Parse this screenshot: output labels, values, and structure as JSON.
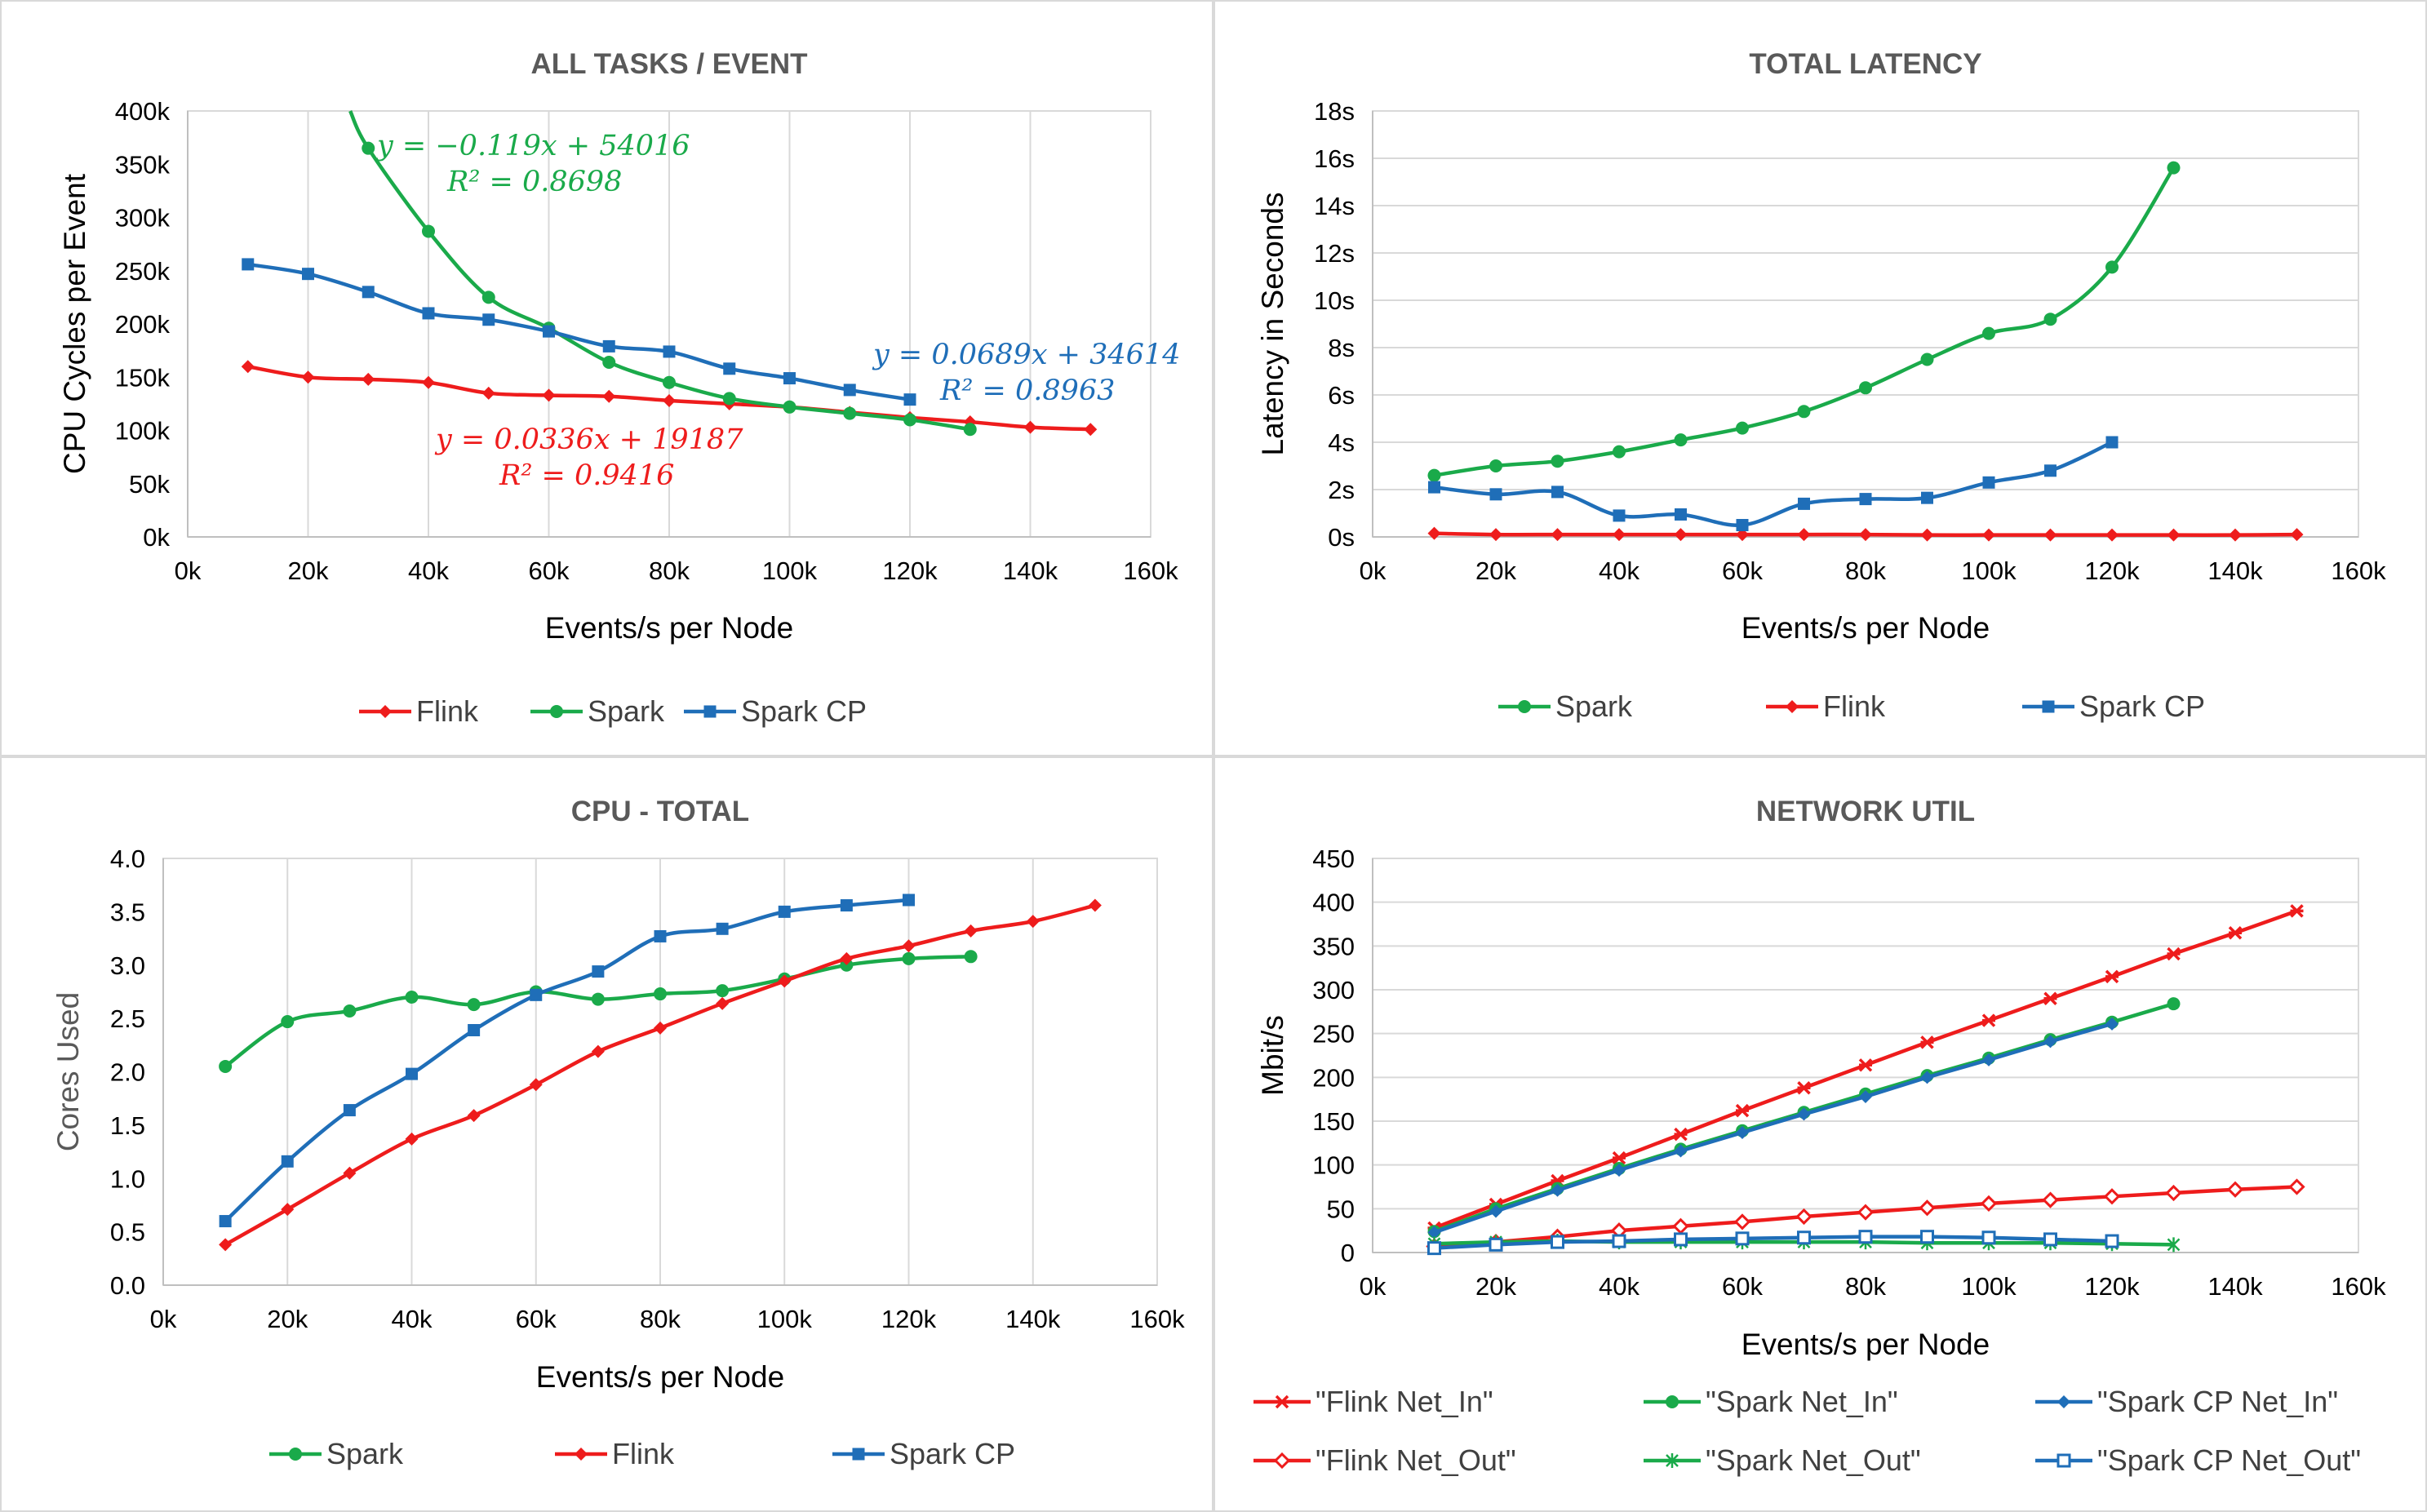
{
  "colors": {
    "flink": "#ee1c1c",
    "spark": "#1aaa4a",
    "spark_cp": "#1f6eb8",
    "grid": "#d9d9d9",
    "axis_text": "#000000",
    "title_text": "#595959"
  },
  "chart_data": [
    {
      "id": "all-tasks",
      "type": "line",
      "title": "ALL TASKS / EVENT",
      "xlabel": "Events/s per Node",
      "ylabel": "CPU Cycles per Event",
      "xlim": [
        0,
        160000
      ],
      "ylim": [
        0,
        400000
      ],
      "xticks": [
        0,
        20000,
        40000,
        60000,
        80000,
        100000,
        120000,
        140000,
        160000
      ],
      "xtick_labels": [
        "0k",
        "20k",
        "40k",
        "60k",
        "80k",
        "100k",
        "120k",
        "140k",
        "160k"
      ],
      "yticks": [
        0,
        50000,
        100000,
        150000,
        200000,
        250000,
        300000,
        350000,
        400000
      ],
      "ytick_labels": [
        "0k",
        "50k",
        "100k",
        "150k",
        "200k",
        "250k",
        "300k",
        "350k",
        "400k"
      ],
      "grid": "vertical",
      "series": [
        {
          "name": "Flink",
          "key": "flink",
          "marker": "diamond",
          "x": [
            10000,
            20000,
            30000,
            40000,
            50000,
            60000,
            70000,
            80000,
            90000,
            100000,
            110000,
            120000,
            130000,
            140000,
            150000
          ],
          "y": [
            160000,
            150000,
            148000,
            145000,
            135000,
            133000,
            132000,
            128000,
            125000,
            122000,
            117000,
            112000,
            108000,
            103000,
            101000
          ]
        },
        {
          "name": "Spark",
          "key": "spark",
          "marker": "circle",
          "lead_in": {
            "x": 27000,
            "y": 400000
          },
          "x": [
            30000,
            40000,
            50000,
            60000,
            70000,
            80000,
            90000,
            100000,
            110000,
            120000,
            130000
          ],
          "y": [
            365000,
            287000,
            225000,
            196000,
            164000,
            145000,
            130000,
            122000,
            116000,
            110000,
            101000
          ]
        },
        {
          "name": "Spark CP",
          "key": "spark_cp",
          "marker": "square",
          "x": [
            10000,
            20000,
            30000,
            40000,
            50000,
            60000,
            70000,
            80000,
            90000,
            100000,
            110000,
            120000
          ],
          "y": [
            256000,
            247000,
            230000,
            210000,
            204000,
            193000,
            179000,
            174000,
            158000,
            149000,
            138000,
            129000
          ]
        }
      ],
      "annotations": [
        {
          "key": "spark",
          "eq": "y = −0.119x + 54016",
          "r2": "R² = 0.8698"
        },
        {
          "key": "spark_cp",
          "eq": "y = 0.0689x + 34614",
          "r2": "R² = 0.8963"
        },
        {
          "key": "flink",
          "eq": "y = 0.0336x + 19187",
          "r2": "R² = 0.9416"
        }
      ],
      "legend": [
        "Flink",
        "Spark",
        "Spark CP"
      ],
      "legend_position": "bottom"
    },
    {
      "id": "total-latency",
      "type": "line",
      "title": "TOTAL LATENCY",
      "xlabel": "Events/s per Node",
      "ylabel": "Latency in Seconds",
      "xlim": [
        0,
        160000
      ],
      "ylim": [
        0,
        18
      ],
      "xticks": [
        0,
        20000,
        40000,
        60000,
        80000,
        100000,
        120000,
        140000,
        160000
      ],
      "xtick_labels": [
        "0k",
        "20k",
        "40k",
        "60k",
        "80k",
        "100k",
        "120k",
        "140k",
        "160k"
      ],
      "yticks": [
        0,
        2,
        4,
        6,
        8,
        10,
        12,
        14,
        16,
        18
      ],
      "ytick_labels": [
        "0s",
        "2s",
        "4s",
        "6s",
        "8s",
        "10s",
        "12s",
        "14s",
        "16s",
        "18s"
      ],
      "grid": "horizontal",
      "series": [
        {
          "name": "Spark",
          "key": "spark",
          "marker": "circle",
          "x": [
            10000,
            20000,
            30000,
            40000,
            50000,
            60000,
            70000,
            80000,
            90000,
            100000,
            110000,
            120000,
            130000
          ],
          "y": [
            2.6,
            3.0,
            3.2,
            3.6,
            4.1,
            4.6,
            5.3,
            6.3,
            7.5,
            8.6,
            9.2,
            11.4,
            15.6
          ]
        },
        {
          "name": "Flink",
          "key": "flink",
          "marker": "diamond",
          "x": [
            10000,
            20000,
            30000,
            40000,
            50000,
            60000,
            70000,
            80000,
            90000,
            100000,
            110000,
            120000,
            130000,
            140000,
            150000
          ],
          "y": [
            0.15,
            0.1,
            0.1,
            0.1,
            0.1,
            0.1,
            0.1,
            0.1,
            0.08,
            0.08,
            0.08,
            0.08,
            0.08,
            0.08,
            0.1
          ]
        },
        {
          "name": "Spark CP",
          "key": "spark_cp",
          "marker": "square",
          "x": [
            10000,
            20000,
            30000,
            40000,
            50000,
            60000,
            70000,
            80000,
            90000,
            100000,
            110000,
            120000
          ],
          "y": [
            2.1,
            1.8,
            1.9,
            0.9,
            0.95,
            0.5,
            1.4,
            1.6,
            1.65,
            2.3,
            2.8,
            4.0
          ]
        }
      ],
      "legend": [
        "Spark",
        "Flink",
        "Spark CP"
      ],
      "legend_position": "bottom"
    },
    {
      "id": "cpu-total",
      "type": "line",
      "title": "CPU - TOTAL",
      "xlabel": "Events/s per Node",
      "ylabel": "Cores Used",
      "xlim": [
        0,
        160000
      ],
      "ylim": [
        0,
        4
      ],
      "xticks": [
        0,
        20000,
        40000,
        60000,
        80000,
        100000,
        120000,
        140000,
        160000
      ],
      "xtick_labels": [
        "0k",
        "20k",
        "40k",
        "60k",
        "80k",
        "100k",
        "120k",
        "140k",
        "160k"
      ],
      "yticks": [
        0,
        0.5,
        1,
        1.5,
        2,
        2.5,
        3,
        3.5,
        4
      ],
      "ytick_labels": [
        "0.0",
        "0.5",
        "1.0",
        "1.5",
        "2.0",
        "2.5",
        "3.0",
        "3.5",
        "4.0"
      ],
      "grid": "vertical",
      "series": [
        {
          "name": "Spark",
          "key": "spark",
          "marker": "circle",
          "x": [
            10000,
            20000,
            30000,
            40000,
            50000,
            60000,
            70000,
            80000,
            90000,
            100000,
            110000,
            120000,
            130000
          ],
          "y": [
            2.05,
            2.47,
            2.57,
            2.7,
            2.63,
            2.75,
            2.68,
            2.73,
            2.76,
            2.87,
            3.0,
            3.06,
            3.08
          ]
        },
        {
          "name": "Flink",
          "key": "flink",
          "marker": "diamond",
          "x": [
            10000,
            20000,
            30000,
            40000,
            50000,
            60000,
            70000,
            80000,
            90000,
            100000,
            110000,
            120000,
            130000,
            140000,
            150000
          ],
          "y": [
            0.38,
            0.71,
            1.05,
            1.37,
            1.59,
            1.88,
            2.19,
            2.41,
            2.64,
            2.85,
            3.06,
            3.18,
            3.32,
            3.41,
            3.56
          ]
        },
        {
          "name": "Spark CP",
          "key": "spark_cp",
          "marker": "square",
          "x": [
            10000,
            20000,
            30000,
            40000,
            50000,
            60000,
            70000,
            80000,
            90000,
            100000,
            110000,
            120000
          ],
          "y": [
            0.6,
            1.16,
            1.64,
            1.98,
            2.39,
            2.72,
            2.94,
            3.27,
            3.34,
            3.5,
            3.56,
            3.61
          ]
        }
      ],
      "legend": [
        "Spark",
        "Flink",
        "Spark CP"
      ],
      "legend_position": "bottom"
    },
    {
      "id": "network-util",
      "type": "line",
      "title": "NETWORK UTIL",
      "xlabel": "Events/s per Node",
      "ylabel": "Mbit/s",
      "xlim": [
        0,
        160000
      ],
      "ylim": [
        0,
        450
      ],
      "xticks": [
        0,
        20000,
        40000,
        60000,
        80000,
        100000,
        120000,
        140000,
        160000
      ],
      "xtick_labels": [
        "0k",
        "20k",
        "40k",
        "60k",
        "80k",
        "100k",
        "120k",
        "140k",
        "160k"
      ],
      "yticks": [
        0,
        50,
        100,
        150,
        200,
        250,
        300,
        350,
        400,
        450
      ],
      "ytick_labels": [
        "0",
        "50",
        "100",
        "150",
        "200",
        "250",
        "300",
        "350",
        "400",
        "450"
      ],
      "grid": "horizontal",
      "series": [
        {
          "name": "\"Flink Net_In\"",
          "key": "flink",
          "marker": "xbar",
          "x": [
            10000,
            20000,
            30000,
            40000,
            50000,
            60000,
            70000,
            80000,
            90000,
            100000,
            110000,
            120000,
            130000,
            140000,
            150000
          ],
          "y": [
            28,
            55,
            82,
            108,
            135,
            162,
            188,
            214,
            240,
            265,
            290,
            315,
            341,
            365,
            390
          ]
        },
        {
          "name": "\"Spark Net_In\"",
          "key": "spark",
          "marker": "circle",
          "x": [
            10000,
            20000,
            30000,
            40000,
            50000,
            60000,
            70000,
            80000,
            90000,
            100000,
            110000,
            120000,
            130000
          ],
          "y": [
            24,
            50,
            73,
            96,
            118,
            139,
            160,
            181,
            202,
            222,
            243,
            263,
            284
          ]
        },
        {
          "name": "\"Spark CP Net_In\"",
          "key": "spark_cp",
          "marker": "diamond",
          "x": [
            10000,
            20000,
            30000,
            40000,
            50000,
            60000,
            70000,
            80000,
            90000,
            100000,
            110000,
            120000
          ],
          "y": [
            23,
            47,
            71,
            94,
            116,
            137,
            158,
            178,
            200,
            220,
            241,
            261
          ]
        },
        {
          "name": "\"Flink Net_Out\"",
          "key": "flink",
          "marker": "diamond-open",
          "x": [
            10000,
            20000,
            30000,
            40000,
            50000,
            60000,
            70000,
            80000,
            90000,
            100000,
            110000,
            120000,
            130000,
            140000,
            150000
          ],
          "y": [
            7,
            12,
            18,
            25,
            30,
            35,
            41,
            46,
            51,
            56,
            60,
            64,
            68,
            72,
            75
          ]
        },
        {
          "name": "\"Spark Net_Out\"",
          "key": "spark",
          "marker": "star",
          "x": [
            10000,
            20000,
            30000,
            40000,
            50000,
            60000,
            70000,
            80000,
            90000,
            100000,
            110000,
            120000,
            130000
          ],
          "y": [
            10,
            12,
            13,
            12,
            12,
            12,
            12,
            12,
            11,
            11,
            11,
            10,
            9
          ]
        },
        {
          "name": "\"Spark CP Net_Out\"",
          "key": "spark_cp",
          "marker": "square-open",
          "x": [
            10000,
            20000,
            30000,
            40000,
            50000,
            60000,
            70000,
            80000,
            90000,
            100000,
            110000,
            120000
          ],
          "y": [
            5,
            9,
            12,
            13,
            15,
            16,
            17,
            18,
            18,
            17,
            15,
            13
          ]
        }
      ],
      "legend": [
        "\"Flink Net_In\"",
        "\"Spark Net_In\"",
        "\"Spark CP Net_In\"",
        "\"Flink Net_Out\"",
        "\"Spark Net_Out\"",
        "\"Spark CP Net_Out\""
      ],
      "legend_position": "bottom"
    }
  ]
}
